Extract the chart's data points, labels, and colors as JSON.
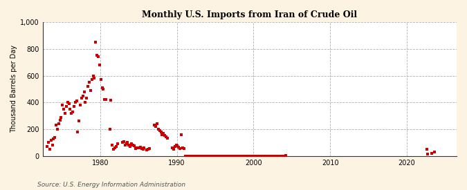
{
  "title": "Monthly U.S. Imports from Iran of Crude Oil",
  "ylabel": "Thousand Barrels per Day",
  "source": "Source: U.S. Energy Information Administration",
  "background_color": "#fdf3e3",
  "plot_background": "#ffffff",
  "marker_color": "#cc0000",
  "marker_size": 5,
  "ylim": [
    0,
    1000
  ],
  "yticks": [
    0,
    200,
    400,
    600,
    800,
    1000
  ],
  "ytick_labels": [
    "0",
    "200",
    "400",
    "600",
    "800",
    "1,000"
  ],
  "xlim_start": 1972.5,
  "xlim_end": 2026.5,
  "xticks": [
    1980,
    1990,
    2000,
    2010,
    2020
  ],
  "data_points": [
    [
      1973.08,
      70
    ],
    [
      1973.25,
      100
    ],
    [
      1973.42,
      50
    ],
    [
      1973.58,
      120
    ],
    [
      1973.75,
      80
    ],
    [
      1973.92,
      130
    ],
    [
      1974.08,
      140
    ],
    [
      1974.25,
      230
    ],
    [
      1974.42,
      200
    ],
    [
      1974.58,
      240
    ],
    [
      1974.75,
      270
    ],
    [
      1974.92,
      290
    ],
    [
      1975.08,
      380
    ],
    [
      1975.25,
      350
    ],
    [
      1975.42,
      320
    ],
    [
      1975.58,
      370
    ],
    [
      1975.75,
      400
    ],
    [
      1975.92,
      390
    ],
    [
      1976.08,
      350
    ],
    [
      1976.25,
      320
    ],
    [
      1976.42,
      330
    ],
    [
      1976.58,
      370
    ],
    [
      1976.75,
      400
    ],
    [
      1976.92,
      410
    ],
    [
      1977.08,
      180
    ],
    [
      1977.25,
      260
    ],
    [
      1977.42,
      380
    ],
    [
      1977.58,
      430
    ],
    [
      1977.75,
      450
    ],
    [
      1977.92,
      480
    ],
    [
      1978.08,
      400
    ],
    [
      1978.25,
      430
    ],
    [
      1978.42,
      520
    ],
    [
      1978.58,
      550
    ],
    [
      1978.75,
      490
    ],
    [
      1978.92,
      570
    ],
    [
      1979.08,
      600
    ],
    [
      1979.25,
      580
    ],
    [
      1979.42,
      850
    ],
    [
      1979.58,
      750
    ],
    [
      1979.75,
      740
    ],
    [
      1979.92,
      680
    ],
    [
      1980.08,
      570
    ],
    [
      1980.25,
      510
    ],
    [
      1980.42,
      500
    ],
    [
      1980.58,
      420
    ],
    [
      1980.75,
      420
    ],
    [
      1981.25,
      200
    ],
    [
      1981.42,
      415
    ],
    [
      1981.58,
      80
    ],
    [
      1981.75,
      50
    ],
    [
      1981.92,
      60
    ],
    [
      1982.08,
      70
    ],
    [
      1982.25,
      90
    ],
    [
      1982.92,
      100
    ],
    [
      1983.08,
      110
    ],
    [
      1983.25,
      80
    ],
    [
      1983.42,
      90
    ],
    [
      1983.58,
      100
    ],
    [
      1983.75,
      80
    ],
    [
      1983.92,
      70
    ],
    [
      1984.08,
      90
    ],
    [
      1984.25,
      80
    ],
    [
      1984.42,
      75
    ],
    [
      1984.58,
      55
    ],
    [
      1984.75,
      60
    ],
    [
      1985.08,
      60
    ],
    [
      1985.25,
      65
    ],
    [
      1985.42,
      55
    ],
    [
      1985.58,
      50
    ],
    [
      1985.75,
      60
    ],
    [
      1986.08,
      45
    ],
    [
      1986.25,
      50
    ],
    [
      1986.42,
      55
    ],
    [
      1987.08,
      230
    ],
    [
      1987.25,
      220
    ],
    [
      1987.42,
      240
    ],
    [
      1987.58,
      200
    ],
    [
      1987.75,
      190
    ],
    [
      1987.92,
      180
    ],
    [
      1988.08,
      160
    ],
    [
      1988.25,
      170
    ],
    [
      1988.42,
      155
    ],
    [
      1988.58,
      145
    ],
    [
      1988.75,
      135
    ],
    [
      1989.42,
      60
    ],
    [
      1989.58,
      50
    ],
    [
      1989.75,
      70
    ],
    [
      1989.92,
      80
    ],
    [
      1990.08,
      75
    ],
    [
      1990.25,
      65
    ],
    [
      1990.42,
      55
    ],
    [
      1990.58,
      160
    ],
    [
      1990.75,
      60
    ],
    [
      1990.92,
      55
    ],
    [
      1991.08,
      0
    ],
    [
      1991.25,
      0
    ],
    [
      1991.42,
      0
    ],
    [
      1991.58,
      0
    ],
    [
      1991.75,
      0
    ],
    [
      1991.92,
      0
    ],
    [
      1992.08,
      0
    ],
    [
      1992.25,
      0
    ],
    [
      1992.42,
      0
    ],
    [
      1992.58,
      0
    ],
    [
      1992.75,
      0
    ],
    [
      1992.92,
      0
    ],
    [
      1993.08,
      0
    ],
    [
      1993.25,
      0
    ],
    [
      1993.42,
      0
    ],
    [
      1993.58,
      0
    ],
    [
      1993.75,
      0
    ],
    [
      1993.92,
      0
    ],
    [
      1994.08,
      0
    ],
    [
      1994.25,
      0
    ],
    [
      1994.42,
      0
    ],
    [
      1994.58,
      0
    ],
    [
      1994.75,
      0
    ],
    [
      1994.92,
      0
    ],
    [
      1995.08,
      0
    ],
    [
      1995.25,
      0
    ],
    [
      1995.42,
      0
    ],
    [
      1995.58,
      0
    ],
    [
      1995.75,
      0
    ],
    [
      1995.92,
      0
    ],
    [
      1996.08,
      0
    ],
    [
      1996.25,
      0
    ],
    [
      1996.42,
      0
    ],
    [
      1996.58,
      0
    ],
    [
      1996.75,
      0
    ],
    [
      1996.92,
      0
    ],
    [
      1997.08,
      0
    ],
    [
      1997.25,
      0
    ],
    [
      1997.42,
      0
    ],
    [
      1997.58,
      0
    ],
    [
      1997.75,
      0
    ],
    [
      1997.92,
      0
    ],
    [
      1998.08,
      0
    ],
    [
      1998.25,
      0
    ],
    [
      1998.42,
      0
    ],
    [
      1998.58,
      0
    ],
    [
      1998.75,
      0
    ],
    [
      1998.92,
      0
    ],
    [
      1999.08,
      0
    ],
    [
      1999.25,
      0
    ],
    [
      1999.42,
      0
    ],
    [
      1999.58,
      0
    ],
    [
      1999.75,
      0
    ],
    [
      1999.92,
      0
    ],
    [
      2000.08,
      0
    ],
    [
      2000.25,
      0
    ],
    [
      2000.42,
      0
    ],
    [
      2000.58,
      0
    ],
    [
      2000.75,
      0
    ],
    [
      2000.92,
      0
    ],
    [
      2001.08,
      0
    ],
    [
      2001.25,
      0
    ],
    [
      2001.42,
      0
    ],
    [
      2001.58,
      0
    ],
    [
      2001.75,
      0
    ],
    [
      2001.92,
      0
    ],
    [
      2002.08,
      0
    ],
    [
      2002.25,
      0
    ],
    [
      2002.42,
      0
    ],
    [
      2002.58,
      0
    ],
    [
      2002.75,
      0
    ],
    [
      2002.92,
      0
    ],
    [
      2003.08,
      0
    ],
    [
      2003.25,
      0
    ],
    [
      2003.42,
      0
    ],
    [
      2003.58,
      0
    ],
    [
      2003.75,
      0
    ],
    [
      2003.92,
      0
    ],
    [
      2004.08,
      0
    ],
    [
      2004.25,
      5
    ],
    [
      2022.58,
      50
    ],
    [
      2022.75,
      15
    ],
    [
      2023.25,
      20
    ],
    [
      2023.58,
      30
    ]
  ]
}
